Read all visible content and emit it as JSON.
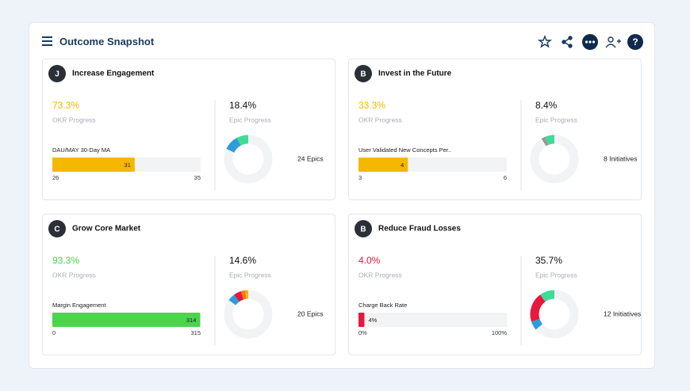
{
  "header": {
    "title": "Outcome Snapshot"
  },
  "cards": [
    {
      "avatar": "J",
      "title": "Increase Engagement",
      "okr_progress": "73.3%",
      "okr_label": "OKR Progress",
      "color": "#f5b800",
      "metric": "DAU/MAY 30-Day MA",
      "bar": {
        "value": 31,
        "min": 26,
        "max": 35
      },
      "epic_progress": "18.4%",
      "epic_label": "Epic Progress",
      "segments": [
        {
          "color": "#3ddc97",
          "value": 8
        },
        {
          "color": "#2d9cdb",
          "value": 10
        }
      ],
      "count": "24 Epics"
    },
    {
      "avatar": "B",
      "title": "Invest in the Future",
      "okr_progress": "33.3%",
      "okr_label": "OKR Progress",
      "color": "#f5b800",
      "metric": "User Validated New Concepts Per..",
      "bar": {
        "value": 4,
        "min": 3,
        "max": 6
      },
      "epic_progress": "8.4%",
      "epic_label": "Epic Progress",
      "segments": [
        {
          "color": "#3ddc97",
          "value": 6
        },
        {
          "color": "#999999",
          "value": 3
        }
      ],
      "count": "8 Initiatives"
    },
    {
      "avatar": "C",
      "title": "Grow Core Market",
      "okr_progress": "93.3%",
      "okr_label": "OKR Progress",
      "color": "#4cd44c",
      "metric": "Margin Engagement",
      "bar": {
        "value": 314,
        "min": 0,
        "max": 315
      },
      "epic_progress": "14.6%",
      "epic_label": "Epic Progress",
      "segments": [
        {
          "color": "#f5b800",
          "value": 2
        },
        {
          "color": "#ff7a1a",
          "value": 3
        },
        {
          "color": "#e8173c",
          "value": 5
        },
        {
          "color": "#2d9cdb",
          "value": 5
        }
      ],
      "count": "20 Epics"
    },
    {
      "avatar": "B",
      "title": "Reduce Fraud Losses",
      "okr_progress": "4.0%",
      "okr_label": "OKR Progress",
      "color": "#e8173c",
      "metric": "Charge Back Rate",
      "bar": {
        "value": {
          "value": 4,
          "label": "4%"
        },
        "min": {
          "value": 0,
          "label": "0%"
        },
        "max": {
          "value": 100,
          "label": "100%"
        }
      },
      "epic_progress": "35.7%",
      "epic_label": "Epic Progress",
      "segments": [
        {
          "color": "#3ddc97",
          "value": 10
        },
        {
          "color": "#e8173c",
          "value": 20
        },
        {
          "color": "#2d9cdb",
          "value": 6
        }
      ],
      "count": "12 Initiatives"
    }
  ]
}
